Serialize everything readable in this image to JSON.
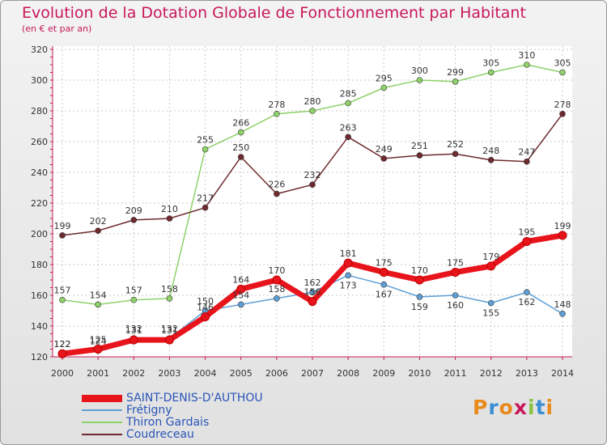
{
  "header": {
    "title": "Evolution de la Dotation Globale de Fonctionnement par Habitant",
    "subtitle": "(en € et par an)"
  },
  "logo": {
    "text": "Proxiti",
    "colors": [
      "#e88a1c",
      "#3a8ed4",
      "#e88a1c",
      "#c8185a",
      "#88c442",
      "#3a8ed4",
      "#e88a1c"
    ]
  },
  "chart_data": {
    "type": "line",
    "title": "Evolution de la Dotation Globale de Fonctionnement par Habitant",
    "subtitle": "(en € et par an)",
    "x": [
      "2000",
      "2001",
      "2002",
      "2003",
      "2004",
      "2005",
      "2006",
      "2007",
      "2008",
      "2009",
      "2010",
      "2011",
      "2012",
      "2013",
      "2014"
    ],
    "ylim": [
      120,
      320
    ],
    "yticks": [
      120,
      140,
      160,
      180,
      200,
      220,
      240,
      260,
      280,
      300,
      320
    ],
    "grid": true,
    "legend_position": "bottom-left",
    "series": [
      {
        "name": "SAINT-DENIS-D'AUTHOU",
        "color": "#e8141c",
        "values": [
          122,
          125,
          131,
          131,
          146,
          164,
          170,
          156,
          181,
          175,
          170,
          175,
          179,
          195,
          199
        ]
      },
      {
        "name": "Frétigny",
        "color": "#5e9fd6",
        "values": [
          122,
          124,
          132,
          132,
          150,
          154,
          158,
          162,
          173,
          167,
          159,
          160,
          155,
          162,
          148
        ]
      },
      {
        "name": "Thiron Gardais",
        "color": "#8fd16a",
        "values": [
          157,
          154,
          157,
          158,
          255,
          266,
          278,
          280,
          285,
          295,
          300,
          299,
          305,
          310,
          305
        ]
      },
      {
        "name": "Coudreceau",
        "color": "#6e2a2e",
        "values": [
          199,
          202,
          209,
          210,
          217,
          250,
          226,
          232,
          263,
          249,
          251,
          252,
          248,
          247,
          278
        ]
      }
    ]
  }
}
